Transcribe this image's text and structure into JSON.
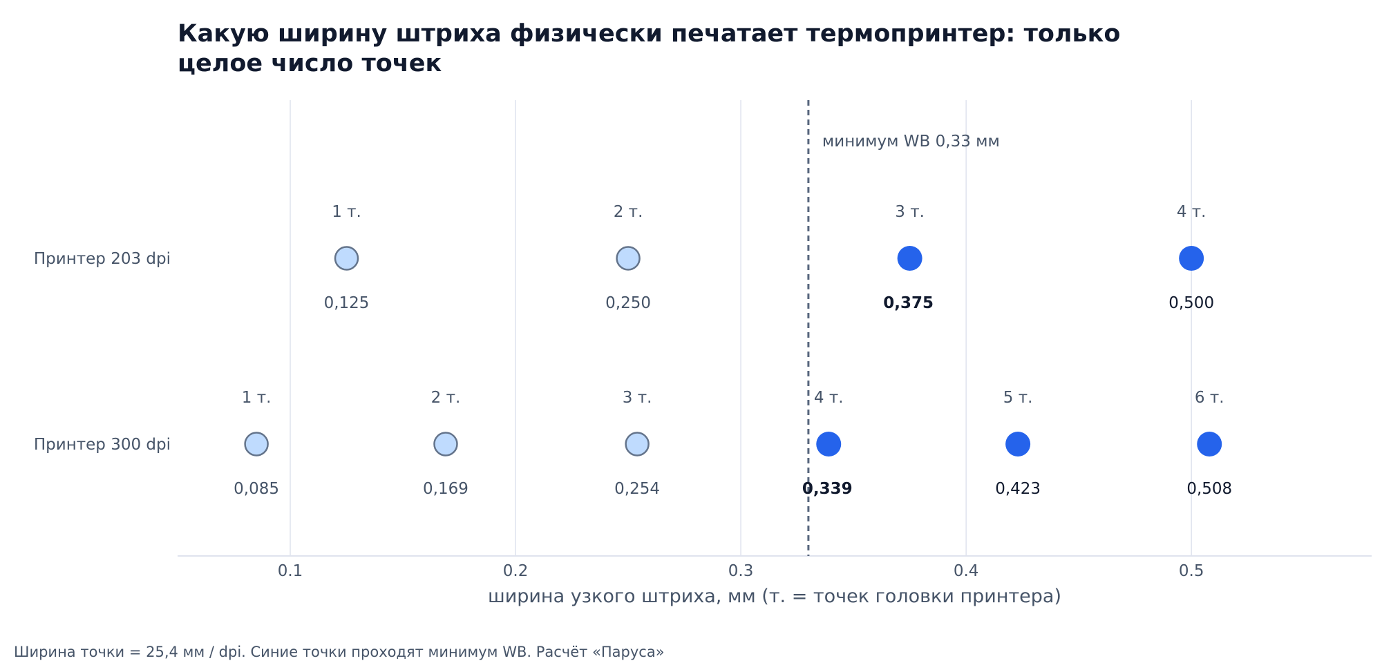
{
  "chart_data": {
    "type": "scatter",
    "title_lines": [
      "Какую ширину штриха физически печатает термопринтер: только",
      "целое число точек"
    ],
    "xlabel": "ширина узкого штриха, мм (т. = точек головки принтера)",
    "xlim": [
      0.05,
      0.58
    ],
    "xticks": [
      0.1,
      0.2,
      0.3,
      0.4,
      0.5
    ],
    "xtick_labels": [
      "0.1",
      "0.2",
      "0.3",
      "0.4",
      "0.5"
    ],
    "grid": true,
    "threshold": {
      "x": 0.33,
      "label": "минимум WB 0,33 мм"
    },
    "rows": [
      {
        "label": "Принтер 203 dpi",
        "points": [
          {
            "x": 0.125,
            "top": "1 т.",
            "value": "0,125",
            "pass": false,
            "bold": false
          },
          {
            "x": 0.25,
            "top": "2 т.",
            "value": "0,250",
            "pass": false,
            "bold": false
          },
          {
            "x": 0.375,
            "top": "3 т.",
            "value": "0,375",
            "pass": true,
            "bold": true
          },
          {
            "x": 0.5,
            "top": "4 т.",
            "value": "0,500",
            "pass": true,
            "bold": false
          }
        ]
      },
      {
        "label": "Принтер 300 dpi",
        "points": [
          {
            "x": 0.085,
            "top": "1 т.",
            "value": "0,085",
            "pass": false,
            "bold": false
          },
          {
            "x": 0.169,
            "top": "2 т.",
            "value": "0,169",
            "pass": false,
            "bold": false
          },
          {
            "x": 0.254,
            "top": "3 т.",
            "value": "0,254",
            "pass": false,
            "bold": false
          },
          {
            "x": 0.339,
            "top": "4 т.",
            "value": "0,339",
            "pass": true,
            "bold": true
          },
          {
            "x": 0.423,
            "top": "5 т.",
            "value": "0,423",
            "pass": true,
            "bold": false
          },
          {
            "x": 0.508,
            "top": "6 т.",
            "value": "0,508",
            "pass": true,
            "bold": false
          }
        ]
      }
    ],
    "colors": {
      "pass_fill": "#2563eb",
      "fail_fill": "#bfdbfe",
      "fail_stroke": "#64748b"
    }
  },
  "footer": {
    "source": "Ширина точки = 25,4 мм / dpi. Синие точки проходят минимум WB. Расчёт «Паруса»"
  }
}
